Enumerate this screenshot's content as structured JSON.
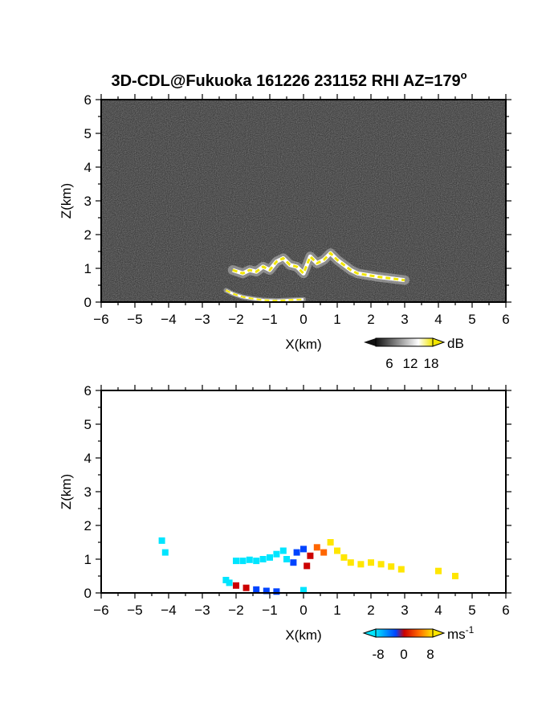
{
  "title": "3D-CDL@Fukuoka 161226 231152 RHI AZ=179",
  "title_degree": "o",
  "chart_data": [
    {
      "type": "heatmap",
      "panel": "top",
      "quantity": "SNR",
      "xlabel": "X(km)",
      "ylabel": "Z(km)",
      "xlim": [
        -6,
        6
      ],
      "ylim": [
        0,
        6
      ],
      "xticks": [
        "-6",
        "-5",
        "-4",
        "-3",
        "-2",
        "-1",
        "0",
        "1",
        "2",
        "3",
        "4",
        "5",
        "6"
      ],
      "yticks": [
        "0",
        "1",
        "2",
        "3",
        "4",
        "5",
        "6"
      ],
      "colorbar": {
        "unit": "dB",
        "ticks": [
          "6",
          "12",
          "18"
        ],
        "range": [
          0,
          21
        ],
        "colors": [
          "#111111",
          "#ffffff",
          "#f2e600"
        ]
      },
      "background": "#2a2a2a",
      "features": [
        {
          "name": "cloud band",
          "points": [
            [
              -2.1,
              0.95
            ],
            [
              -1.8,
              0.85
            ],
            [
              -1.6,
              0.95
            ],
            [
              -1.4,
              0.9
            ],
            [
              -1.2,
              1.05
            ],
            [
              -1.0,
              0.95
            ],
            [
              -0.8,
              1.2
            ],
            [
              -0.6,
              1.3
            ],
            [
              -0.4,
              1.1
            ],
            [
              -0.2,
              1.05
            ],
            [
              0.0,
              0.85
            ],
            [
              0.2,
              1.35
            ],
            [
              0.4,
              1.15
            ],
            [
              0.6,
              1.25
            ],
            [
              0.8,
              1.45
            ],
            [
              1.0,
              1.25
            ],
            [
              1.2,
              1.1
            ],
            [
              1.4,
              0.95
            ],
            [
              1.6,
              0.85
            ],
            [
              1.9,
              0.8
            ],
            [
              2.2,
              0.75
            ],
            [
              2.6,
              0.7
            ],
            [
              3.0,
              0.65
            ]
          ]
        },
        {
          "name": "near-ground echo",
          "points": [
            [
              -2.3,
              0.35
            ],
            [
              -2.1,
              0.25
            ],
            [
              -1.8,
              0.15
            ],
            [
              -1.5,
              0.1
            ],
            [
              -1.2,
              0.06
            ],
            [
              -0.8,
              0.04
            ],
            [
              0.0,
              0.08
            ]
          ]
        }
      ]
    },
    {
      "type": "heatmap",
      "panel": "bottom",
      "quantity": "Doppler velocity",
      "xlabel": "X(km)",
      "ylabel": "Z(km)",
      "xlim": [
        -6,
        6
      ],
      "ylim": [
        0,
        6
      ],
      "xticks": [
        "-6",
        "-5",
        "-4",
        "-3",
        "-2",
        "-1",
        "0",
        "1",
        "2",
        "3",
        "4",
        "5",
        "6"
      ],
      "yticks": [
        "0",
        "1",
        "2",
        "3",
        "4",
        "5",
        "6"
      ],
      "colorbar": {
        "unit": "ms",
        "unit_exp": "-1",
        "ticks": [
          "-8",
          "0",
          "8"
        ],
        "range": [
          -10,
          10
        ],
        "colors": [
          "#00e5ff",
          "#0044ff",
          "#cc0000",
          "#ff6600",
          "#ffe600"
        ]
      },
      "points": [
        [
          -4.2,
          1.55,
          -9
        ],
        [
          -4.1,
          1.2,
          -9
        ],
        [
          -2.0,
          0.95,
          -8
        ],
        [
          -1.8,
          0.95,
          -8
        ],
        [
          -1.6,
          0.98,
          -7
        ],
        [
          -1.4,
          0.95,
          -7
        ],
        [
          -1.2,
          1.0,
          -7
        ],
        [
          -1.0,
          1.05,
          -6
        ],
        [
          -0.8,
          1.15,
          -5
        ],
        [
          -0.6,
          1.25,
          -4
        ],
        [
          -0.5,
          1.0,
          -5
        ],
        [
          -0.3,
          0.9,
          -3
        ],
        [
          -0.2,
          1.2,
          -2
        ],
        [
          0.0,
          1.3,
          -1
        ],
        [
          0.1,
          0.8,
          1
        ],
        [
          0.2,
          1.1,
          2
        ],
        [
          0.4,
          1.35,
          3
        ],
        [
          0.6,
          1.2,
          4
        ],
        [
          0.8,
          1.5,
          5
        ],
        [
          1.0,
          1.25,
          5
        ],
        [
          1.2,
          1.05,
          6
        ],
        [
          1.4,
          0.9,
          7
        ],
        [
          1.7,
          0.85,
          7
        ],
        [
          2.0,
          0.9,
          8
        ],
        [
          2.3,
          0.85,
          8
        ],
        [
          2.6,
          0.78,
          8
        ],
        [
          2.9,
          0.7,
          8
        ],
        [
          4.0,
          0.65,
          8
        ],
        [
          4.5,
          0.5,
          7
        ],
        [
          -2.3,
          0.38,
          -6
        ],
        [
          -2.2,
          0.3,
          -4
        ],
        [
          -2.0,
          0.22,
          2
        ],
        [
          -1.7,
          0.15,
          1
        ],
        [
          -1.4,
          0.1,
          -1
        ],
        [
          -1.1,
          0.06,
          -2
        ],
        [
          -0.8,
          0.04,
          -1
        ],
        [
          0.0,
          0.08,
          -9
        ]
      ]
    }
  ]
}
